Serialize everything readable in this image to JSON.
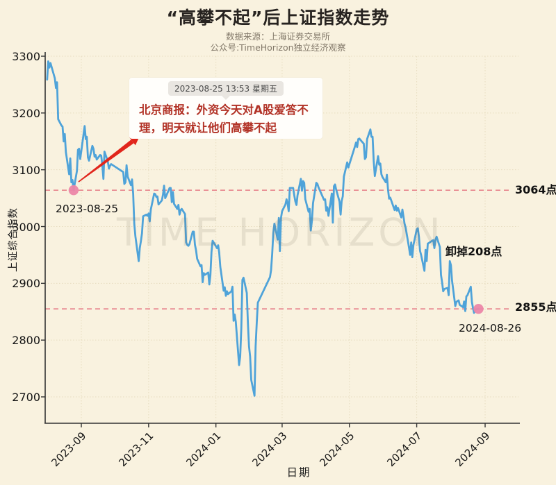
{
  "title": "“高攀不起”后上证指数走势",
  "subtitle_line1": "数据来源：上海证券交易所",
  "subtitle_line2": "公众号:TimeHorizon独立经济观察",
  "watermark": "TIME HORIZON",
  "callout": {
    "timestamp": "2023-08-25 13:53 星期五",
    "text": "北京商报：外资今天对A股爱答不理，明天就让他们高攀不起"
  },
  "annotations": {
    "start_date_label": "2023-08-25",
    "end_date_label": "2024-08-26",
    "upper_ref_label": "3064点",
    "lower_ref_label": "2855点",
    "drop_label": "卸掉208点"
  },
  "colors": {
    "background": "#f9f2df",
    "line": "#4fa3d9",
    "ref_dash": "#e4707e",
    "marker_dot": "#ec86a8",
    "arrow": "#e1251b",
    "callout_text": "#b23327",
    "grid": "#e6dcbf",
    "axis": "#333333",
    "watermark": "rgba(110,98,74,0.13)"
  },
  "chart_data": {
    "type": "line",
    "title": "“高攀不起”后上证指数走势",
    "xlabel": "日期",
    "ylabel": "上证综合指数",
    "ylim": [
      2650,
      3310
    ],
    "yticks": [
      2700,
      2800,
      2900,
      3000,
      3100,
      3200,
      3300
    ],
    "xticks": [
      "2023-09",
      "2023-11",
      "2024-01",
      "2024-03",
      "2024-05",
      "2024-07",
      "2024-09"
    ],
    "grid": true,
    "legend": "none",
    "ref_lines": [
      {
        "value": 3064,
        "label": "3064点"
      },
      {
        "value": 2855,
        "label": "2855点"
      }
    ],
    "markers": [
      {
        "date": "2023-08-25",
        "value": 3064,
        "label": "2023-08-25"
      },
      {
        "date": "2024-08-26",
        "value": 2855,
        "label": "2024-08-26"
      }
    ],
    "series": [
      {
        "name": "上证综合指数",
        "points": [
          [
            "2023-08-01",
            3259
          ],
          [
            "2023-08-02",
            3291
          ],
          [
            "2023-08-03",
            3280
          ],
          [
            "2023-08-04",
            3288
          ],
          [
            "2023-08-07",
            3268
          ],
          [
            "2023-08-08",
            3261
          ],
          [
            "2023-08-09",
            3244
          ],
          [
            "2023-08-10",
            3254
          ],
          [
            "2023-08-11",
            3189
          ],
          [
            "2023-08-14",
            3178
          ],
          [
            "2023-08-15",
            3176
          ],
          [
            "2023-08-16",
            3150
          ],
          [
            "2023-08-17",
            3163
          ],
          [
            "2023-08-18",
            3131
          ],
          [
            "2023-08-21",
            3092
          ],
          [
            "2023-08-22",
            3120
          ],
          [
            "2023-08-23",
            3078
          ],
          [
            "2023-08-24",
            3082
          ],
          [
            "2023-08-25",
            3064
          ],
          [
            "2023-08-28",
            3098
          ],
          [
            "2023-08-29",
            3135
          ],
          [
            "2023-08-30",
            3137
          ],
          [
            "2023-08-31",
            3119
          ],
          [
            "2023-09-01",
            3133
          ],
          [
            "2023-09-04",
            3177
          ],
          [
            "2023-09-05",
            3154
          ],
          [
            "2023-09-06",
            3158
          ],
          [
            "2023-09-07",
            3122
          ],
          [
            "2023-09-08",
            3116
          ],
          [
            "2023-09-11",
            3142
          ],
          [
            "2023-09-12",
            3137
          ],
          [
            "2023-09-13",
            3123
          ],
          [
            "2023-09-14",
            3126
          ],
          [
            "2023-09-15",
            3118
          ],
          [
            "2023-09-18",
            3126
          ],
          [
            "2023-09-19",
            3125
          ],
          [
            "2023-09-20",
            3109
          ],
          [
            "2023-09-21",
            3084
          ],
          [
            "2023-09-22",
            3132
          ],
          [
            "2023-09-25",
            3115
          ],
          [
            "2023-09-26",
            3102
          ],
          [
            "2023-09-27",
            3107
          ],
          [
            "2023-09-28",
            3110
          ],
          [
            "2023-10-09",
            3096
          ],
          [
            "2023-10-10",
            3075
          ],
          [
            "2023-10-11",
            3078
          ],
          [
            "2023-10-12",
            3108
          ],
          [
            "2023-10-13",
            3088
          ],
          [
            "2023-10-16",
            3073
          ],
          [
            "2023-10-17",
            3083
          ],
          [
            "2023-10-18",
            3058
          ],
          [
            "2023-10-19",
            3005
          ],
          [
            "2023-10-20",
            2983
          ],
          [
            "2023-10-23",
            2939
          ],
          [
            "2023-10-24",
            2962
          ],
          [
            "2023-10-25",
            2974
          ],
          [
            "2023-10-26",
            2988
          ],
          [
            "2023-10-27",
            3018
          ],
          [
            "2023-10-30",
            3021
          ],
          [
            "2023-10-31",
            3019
          ],
          [
            "2023-11-01",
            3023
          ],
          [
            "2023-11-02",
            3009
          ],
          [
            "2023-11-03",
            3030
          ],
          [
            "2023-11-06",
            3058
          ],
          [
            "2023-11-07",
            3057
          ],
          [
            "2023-11-08",
            3052
          ],
          [
            "2023-11-09",
            3053
          ],
          [
            "2023-11-10",
            3039
          ],
          [
            "2023-11-13",
            3046
          ],
          [
            "2023-11-14",
            3056
          ],
          [
            "2023-11-15",
            3072
          ],
          [
            "2023-11-16",
            3050
          ],
          [
            "2023-11-17",
            3054
          ],
          [
            "2023-11-20",
            3068
          ],
          [
            "2023-11-21",
            3068
          ],
          [
            "2023-11-22",
            3043
          ],
          [
            "2023-11-23",
            3061
          ],
          [
            "2023-11-24",
            3040
          ],
          [
            "2023-11-27",
            3031
          ],
          [
            "2023-11-28",
            3038
          ],
          [
            "2023-11-29",
            3021
          ],
          [
            "2023-11-30",
            3029
          ],
          [
            "2023-12-01",
            3031
          ],
          [
            "2023-12-04",
            3022
          ],
          [
            "2023-12-05",
            2972
          ],
          [
            "2023-12-06",
            2968
          ],
          [
            "2023-12-07",
            2966
          ],
          [
            "2023-12-08",
            2969
          ],
          [
            "2023-12-11",
            2991
          ],
          [
            "2023-12-12",
            2991
          ],
          [
            "2023-12-13",
            2968
          ],
          [
            "2023-12-14",
            2958
          ],
          [
            "2023-12-15",
            2943
          ],
          [
            "2023-12-18",
            2930
          ],
          [
            "2023-12-19",
            2932
          ],
          [
            "2023-12-20",
            2902
          ],
          [
            "2023-12-21",
            2918
          ],
          [
            "2023-12-22",
            2915
          ],
          [
            "2023-12-25",
            2919
          ],
          [
            "2023-12-26",
            2898
          ],
          [
            "2023-12-27",
            2914
          ],
          [
            "2023-12-28",
            2955
          ],
          [
            "2023-12-29",
            2975
          ],
          [
            "2024-01-02",
            2962
          ],
          [
            "2024-01-03",
            2967
          ],
          [
            "2024-01-04",
            2954
          ],
          [
            "2024-01-05",
            2929
          ],
          [
            "2024-01-08",
            2887
          ],
          [
            "2024-01-09",
            2893
          ],
          [
            "2024-01-10",
            2878
          ],
          [
            "2024-01-11",
            2886
          ],
          [
            "2024-01-12",
            2881
          ],
          [
            "2024-01-15",
            2886
          ],
          [
            "2024-01-16",
            2894
          ],
          [
            "2024-01-17",
            2834
          ],
          [
            "2024-01-18",
            2845
          ],
          [
            "2024-01-19",
            2832
          ],
          [
            "2024-01-22",
            2756
          ],
          [
            "2024-01-23",
            2771
          ],
          [
            "2024-01-24",
            2821
          ],
          [
            "2024-01-25",
            2906
          ],
          [
            "2024-01-26",
            2910
          ],
          [
            "2024-01-29",
            2883
          ],
          [
            "2024-01-30",
            2830
          ],
          [
            "2024-01-31",
            2789
          ],
          [
            "2024-02-01",
            2771
          ],
          [
            "2024-02-02",
            2730
          ],
          [
            "2024-02-05",
            2702
          ],
          [
            "2024-02-06",
            2789
          ],
          [
            "2024-02-07",
            2830
          ],
          [
            "2024-02-08",
            2866
          ],
          [
            "2024-02-19",
            2911
          ],
          [
            "2024-02-20",
            2923
          ],
          [
            "2024-02-21",
            2951
          ],
          [
            "2024-02-22",
            2988
          ],
          [
            "2024-02-23",
            3005
          ],
          [
            "2024-02-26",
            2977
          ],
          [
            "2024-02-27",
            3015
          ],
          [
            "2024-02-28",
            2957
          ],
          [
            "2024-02-29",
            3015
          ],
          [
            "2024-03-01",
            3027
          ],
          [
            "2024-03-04",
            3039
          ],
          [
            "2024-03-05",
            3048
          ],
          [
            "2024-03-06",
            3040
          ],
          [
            "2024-03-07",
            3027
          ],
          [
            "2024-03-08",
            3068
          ],
          [
            "2024-03-11",
            3068
          ],
          [
            "2024-03-12",
            3055
          ],
          [
            "2024-03-13",
            3044
          ],
          [
            "2024-03-14",
            3038
          ],
          [
            "2024-03-15",
            3055
          ],
          [
            "2024-03-18",
            3084
          ],
          [
            "2024-03-19",
            3063
          ],
          [
            "2024-03-20",
            3080
          ],
          [
            "2024-03-21",
            3077
          ],
          [
            "2024-03-22",
            3048
          ],
          [
            "2024-03-25",
            3026
          ],
          [
            "2024-03-26",
            3031
          ],
          [
            "2024-03-27",
            2993
          ],
          [
            "2024-03-28",
            3010
          ],
          [
            "2024-03-29",
            3041
          ],
          [
            "2024-04-01",
            3077
          ],
          [
            "2024-04-02",
            3075
          ],
          [
            "2024-04-03",
            3069
          ],
          [
            "2024-04-08",
            3047
          ],
          [
            "2024-04-09",
            3048
          ],
          [
            "2024-04-10",
            3028
          ],
          [
            "2024-04-11",
            3034
          ],
          [
            "2024-04-12",
            3019
          ],
          [
            "2024-04-15",
            3058
          ],
          [
            "2024-04-16",
            3007
          ],
          [
            "2024-04-17",
            3071
          ],
          [
            "2024-04-18",
            3074
          ],
          [
            "2024-04-19",
            3065
          ],
          [
            "2024-04-22",
            3044
          ],
          [
            "2024-04-23",
            3021
          ],
          [
            "2024-04-24",
            3045
          ],
          [
            "2024-04-25",
            3053
          ],
          [
            "2024-04-26",
            3088
          ],
          [
            "2024-04-29",
            3113
          ],
          [
            "2024-04-30",
            3104
          ],
          [
            "2024-05-06",
            3141
          ],
          [
            "2024-05-07",
            3148
          ],
          [
            "2024-05-08",
            3140
          ],
          [
            "2024-05-09",
            3154
          ],
          [
            "2024-05-10",
            3155
          ],
          [
            "2024-05-13",
            3148
          ],
          [
            "2024-05-14",
            3146
          ],
          [
            "2024-05-15",
            3119
          ],
          [
            "2024-05-16",
            3122
          ],
          [
            "2024-05-17",
            3154
          ],
          [
            "2024-05-20",
            3171
          ],
          [
            "2024-05-21",
            3158
          ],
          [
            "2024-05-22",
            3158
          ],
          [
            "2024-05-23",
            3116
          ],
          [
            "2024-05-24",
            3089
          ],
          [
            "2024-05-27",
            3124
          ],
          [
            "2024-05-28",
            3109
          ],
          [
            "2024-05-29",
            3111
          ],
          [
            "2024-05-30",
            3092
          ],
          [
            "2024-05-31",
            3087
          ],
          [
            "2024-06-03",
            3078
          ],
          [
            "2024-06-04",
            3091
          ],
          [
            "2024-06-05",
            3065
          ],
          [
            "2024-06-06",
            3049
          ],
          [
            "2024-06-07",
            3051
          ],
          [
            "2024-06-11",
            3029
          ],
          [
            "2024-06-12",
            3037
          ],
          [
            "2024-06-13",
            3028
          ],
          [
            "2024-06-14",
            3033
          ],
          [
            "2024-06-17",
            3016
          ],
          [
            "2024-06-18",
            3030
          ],
          [
            "2024-06-19",
            3018
          ],
          [
            "2024-06-20",
            3005
          ],
          [
            "2024-06-21",
            2998
          ],
          [
            "2024-06-24",
            2963
          ],
          [
            "2024-06-25",
            2950
          ],
          [
            "2024-06-26",
            2972
          ],
          [
            "2024-06-27",
            2946
          ],
          [
            "2024-06-28",
            2967
          ],
          [
            "2024-07-01",
            2995
          ],
          [
            "2024-07-02",
            2997
          ],
          [
            "2024-07-03",
            2982
          ],
          [
            "2024-07-04",
            2957
          ],
          [
            "2024-07-05",
            2950
          ],
          [
            "2024-07-08",
            2922
          ],
          [
            "2024-07-09",
            2959
          ],
          [
            "2024-07-10",
            2939
          ],
          [
            "2024-07-11",
            2970
          ],
          [
            "2024-07-12",
            2971
          ],
          [
            "2024-07-15",
            2975
          ],
          [
            "2024-07-16",
            2976
          ],
          [
            "2024-07-17",
            2962
          ],
          [
            "2024-07-18",
            2977
          ],
          [
            "2024-07-19",
            2982
          ],
          [
            "2024-07-22",
            2964
          ],
          [
            "2024-07-23",
            2915
          ],
          [
            "2024-07-24",
            2902
          ],
          [
            "2024-07-25",
            2886
          ],
          [
            "2024-07-26",
            2890
          ],
          [
            "2024-07-29",
            2892
          ],
          [
            "2024-07-30",
            2879
          ],
          [
            "2024-07-31",
            2939
          ],
          [
            "2024-08-01",
            2932
          ],
          [
            "2024-08-02",
            2905
          ],
          [
            "2024-08-05",
            2860
          ],
          [
            "2024-08-06",
            2867
          ],
          [
            "2024-08-07",
            2869
          ],
          [
            "2024-08-08",
            2870
          ],
          [
            "2024-08-09",
            2862
          ],
          [
            "2024-08-12",
            2858
          ],
          [
            "2024-08-13",
            2868
          ],
          [
            "2024-08-14",
            2851
          ],
          [
            "2024-08-15",
            2877
          ],
          [
            "2024-08-16",
            2879
          ],
          [
            "2024-08-19",
            2894
          ],
          [
            "2024-08-20",
            2867
          ],
          [
            "2024-08-21",
            2857
          ],
          [
            "2024-08-22",
            2848
          ],
          [
            "2024-08-23",
            2854
          ],
          [
            "2024-08-26",
            2855
          ]
        ]
      }
    ]
  }
}
